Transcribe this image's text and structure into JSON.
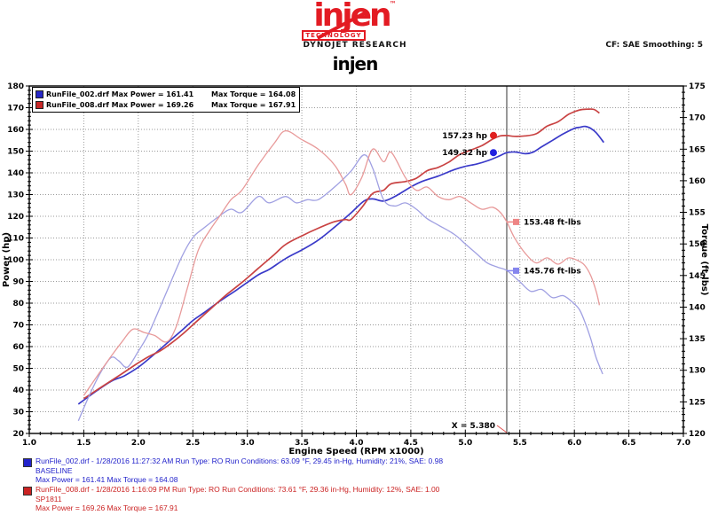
{
  "header": {
    "logo_text": "injen",
    "logo_tm": "™",
    "logo_sub": "TECHNOLOGY",
    "brand": "DYNOJET RESEARCH",
    "settings": "CF: SAE  Smoothing: 5",
    "title": "injen"
  },
  "legend": {
    "rows": [
      {
        "color": "#2828c8",
        "name_power": "RunFile_002.drf Max Power = 161.41",
        "torque": "Max Torque = 164.08"
      },
      {
        "color": "#c82828",
        "name_power": "RunFile_008.drf Max Power = 169.26",
        "torque": "Max Torque = 167.91"
      }
    ]
  },
  "chart_data": {
    "type": "line",
    "xlabel": "Engine Speed (RPM x1000)",
    "ylabel_left": "Power (hp)",
    "ylabel_right": "Torque (ft-lbs)",
    "x_range": [
      1.0,
      7.0
    ],
    "x_major": 0.5,
    "x_minor": 0.1,
    "y_left_range": [
      20,
      180
    ],
    "y_left_major": 10,
    "y_left_minor": 2,
    "y_right_range": [
      120,
      175
    ],
    "y_right_major": 5,
    "y_right_minor": 1,
    "grid_color": "#9a9a9a",
    "cursor_x": 5.38,
    "cursor_color": "#555555",
    "series": [
      {
        "name": "power-baseline",
        "axis": "left",
        "color": "#3a3ac9",
        "width": 1.7,
        "points": [
          [
            1.45,
            33.5
          ],
          [
            1.6,
            39
          ],
          [
            1.75,
            44
          ],
          [
            1.87,
            46.5
          ],
          [
            2.0,
            50.5
          ],
          [
            2.1,
            54.5
          ],
          [
            2.25,
            61
          ],
          [
            2.4,
            67.5
          ],
          [
            2.5,
            72
          ],
          [
            2.6,
            75.5
          ],
          [
            2.75,
            81
          ],
          [
            2.9,
            86
          ],
          [
            3.1,
            93
          ],
          [
            3.2,
            95.5
          ],
          [
            3.35,
            100.5
          ],
          [
            3.5,
            104.5
          ],
          [
            3.65,
            109
          ],
          [
            3.8,
            115
          ],
          [
            3.95,
            121.5
          ],
          [
            4.07,
            127
          ],
          [
            4.15,
            128
          ],
          [
            4.25,
            127
          ],
          [
            4.35,
            129
          ],
          [
            4.5,
            133.5
          ],
          [
            4.6,
            136
          ],
          [
            4.75,
            138.5
          ],
          [
            4.9,
            141.5
          ],
          [
            5.0,
            143
          ],
          [
            5.1,
            144
          ],
          [
            5.2,
            145.5
          ],
          [
            5.3,
            147.5
          ],
          [
            5.38,
            149.3
          ],
          [
            5.46,
            149.6
          ],
          [
            5.55,
            148.8
          ],
          [
            5.62,
            149.5
          ],
          [
            5.7,
            152
          ],
          [
            5.8,
            155
          ],
          [
            5.9,
            158
          ],
          [
            6.0,
            160.5
          ],
          [
            6.05,
            161
          ],
          [
            6.1,
            161.4
          ],
          [
            6.15,
            160.5
          ],
          [
            6.2,
            158.5
          ],
          [
            6.27,
            154
          ]
        ]
      },
      {
        "name": "power-sp1811",
        "axis": "left",
        "color": "#c94343",
        "width": 1.7,
        "points": [
          [
            1.5,
            36
          ],
          [
            1.65,
            41
          ],
          [
            1.85,
            47.5
          ],
          [
            2.0,
            52.5
          ],
          [
            2.1,
            55.5
          ],
          [
            2.2,
            58
          ],
          [
            2.3,
            61.5
          ],
          [
            2.4,
            65.5
          ],
          [
            2.5,
            70
          ],
          [
            2.6,
            74.5
          ],
          [
            2.7,
            79
          ],
          [
            2.8,
            83.5
          ],
          [
            2.95,
            89.5
          ],
          [
            3.1,
            96
          ],
          [
            3.25,
            102.5
          ],
          [
            3.35,
            107
          ],
          [
            3.5,
            111
          ],
          [
            3.65,
            114.5
          ],
          [
            3.8,
            117.5
          ],
          [
            3.9,
            118.5
          ],
          [
            3.95,
            118.5
          ],
          [
            4.05,
            124
          ],
          [
            4.15,
            130.5
          ],
          [
            4.25,
            132
          ],
          [
            4.32,
            135
          ],
          [
            4.45,
            136
          ],
          [
            4.55,
            137.5
          ],
          [
            4.65,
            141
          ],
          [
            4.75,
            142.5
          ],
          [
            4.85,
            145
          ],
          [
            4.95,
            148.5
          ],
          [
            5.05,
            150.5
          ],
          [
            5.15,
            152.5
          ],
          [
            5.25,
            155.5
          ],
          [
            5.32,
            157
          ],
          [
            5.38,
            157.2
          ],
          [
            5.45,
            156.8
          ],
          [
            5.55,
            157
          ],
          [
            5.65,
            158
          ],
          [
            5.75,
            161.5
          ],
          [
            5.85,
            163.5
          ],
          [
            5.95,
            167
          ],
          [
            6.05,
            169
          ],
          [
            6.12,
            169.3
          ],
          [
            6.18,
            169.2
          ],
          [
            6.23,
            167.5
          ]
        ]
      },
      {
        "name": "torque-baseline",
        "axis": "right",
        "color": "#a0a0e2",
        "width": 1.3,
        "points": [
          [
            1.45,
            122
          ],
          [
            1.55,
            126
          ],
          [
            1.65,
            129.5
          ],
          [
            1.75,
            132
          ],
          [
            1.82,
            131.5
          ],
          [
            1.9,
            130.5
          ],
          [
            2.0,
            133
          ],
          [
            2.1,
            136
          ],
          [
            2.25,
            142
          ],
          [
            2.4,
            148
          ],
          [
            2.5,
            151
          ],
          [
            2.6,
            152.5
          ],
          [
            2.75,
            154.5
          ],
          [
            2.85,
            155.5
          ],
          [
            2.95,
            155
          ],
          [
            3.1,
            157.5
          ],
          [
            3.2,
            156.5
          ],
          [
            3.35,
            157.5
          ],
          [
            3.45,
            156.5
          ],
          [
            3.55,
            157
          ],
          [
            3.65,
            157
          ],
          [
            3.8,
            159
          ],
          [
            3.95,
            161.5
          ],
          [
            4.07,
            164.1
          ],
          [
            4.15,
            162
          ],
          [
            4.25,
            157
          ],
          [
            4.35,
            156
          ],
          [
            4.45,
            156.5
          ],
          [
            4.55,
            155.5
          ],
          [
            4.65,
            154
          ],
          [
            4.75,
            153
          ],
          [
            4.9,
            151.5
          ],
          [
            5.0,
            150
          ],
          [
            5.1,
            148.5
          ],
          [
            5.2,
            147
          ],
          [
            5.3,
            146.3
          ],
          [
            5.38,
            145.8
          ],
          [
            5.5,
            144
          ],
          [
            5.6,
            142.5
          ],
          [
            5.7,
            142.8
          ],
          [
            5.8,
            141.5
          ],
          [
            5.9,
            141.8
          ],
          [
            6.0,
            140.5
          ],
          [
            6.05,
            139.5
          ],
          [
            6.1,
            137.5
          ],
          [
            6.15,
            135
          ],
          [
            6.2,
            132
          ],
          [
            6.26,
            129.4
          ]
        ]
      },
      {
        "name": "torque-sp1811",
        "axis": "right",
        "color": "#e89a9a",
        "width": 1.3,
        "points": [
          [
            1.5,
            126
          ],
          [
            1.7,
            131
          ],
          [
            1.85,
            134.5
          ],
          [
            1.95,
            136.5
          ],
          [
            2.05,
            136
          ],
          [
            2.15,
            135.5
          ],
          [
            2.26,
            134.5
          ],
          [
            2.35,
            137
          ],
          [
            2.45,
            143
          ],
          [
            2.55,
            149
          ],
          [
            2.65,
            152
          ],
          [
            2.75,
            154.5
          ],
          [
            2.85,
            157
          ],
          [
            2.95,
            158.5
          ],
          [
            3.1,
            162.5
          ],
          [
            3.25,
            166
          ],
          [
            3.35,
            167.9
          ],
          [
            3.5,
            166.5
          ],
          [
            3.65,
            165
          ],
          [
            3.8,
            162.5
          ],
          [
            3.9,
            159.5
          ],
          [
            3.95,
            157.8
          ],
          [
            4.05,
            160.5
          ],
          [
            4.15,
            165
          ],
          [
            4.25,
            163
          ],
          [
            4.32,
            164.5
          ],
          [
            4.45,
            160.5
          ],
          [
            4.55,
            158.5
          ],
          [
            4.65,
            159
          ],
          [
            4.75,
            157.5
          ],
          [
            4.85,
            157
          ],
          [
            4.95,
            157.5
          ],
          [
            5.05,
            156.5
          ],
          [
            5.15,
            155.5
          ],
          [
            5.25,
            155.8
          ],
          [
            5.32,
            155
          ],
          [
            5.38,
            153.5
          ],
          [
            5.45,
            151
          ],
          [
            5.55,
            148.5
          ],
          [
            5.65,
            147
          ],
          [
            5.75,
            147.8
          ],
          [
            5.85,
            146.8
          ],
          [
            5.95,
            147.8
          ],
          [
            6.05,
            147.2
          ],
          [
            6.1,
            146.5
          ],
          [
            6.15,
            145
          ],
          [
            6.2,
            142.5
          ],
          [
            6.23,
            140.3
          ]
        ]
      }
    ],
    "annotations": {
      "power": [
        {
          "label": "157.23 hp",
          "value": 157.23,
          "marker_color": "#e02020"
        },
        {
          "label": "149.32 hp",
          "value": 149.32,
          "marker_color": "#2020e0"
        }
      ],
      "torque": [
        {
          "label": "153.48 ft-lbs",
          "value": 153.48,
          "marker_color": "#ee8585"
        },
        {
          "label": "145.76 ft-lbs",
          "value": 145.76,
          "marker_color": "#8585ee"
        }
      ],
      "cursor_label": "X = 5.380",
      "cursor_label_color": "#000000",
      "cursor_pointer_color": "#e05050"
    }
  },
  "footer": {
    "runs": [
      {
        "color": "#2323cb",
        "line1": "RunFile_002.drf - 1/28/2016 11:27:32 AM  Run Type: RO  Run Conditions: 63.09 °F, 29.45 in-Hg,  Humidity:  21%, SAE: 0.98",
        "line2": "BASELINE",
        "line3": "Max Power = 161.41  Max Torque = 164.08"
      },
      {
        "color": "#cb2323",
        "line1": "RunFile_008.drf - 1/28/2016 1:16:09 PM  Run Type: RO  Run Conditions: 73.61 °F, 29.36 in-Hg,  Humidity:  12%, SAE: 1.00",
        "line2": "SP1811",
        "line3": "Max Power = 169.26  Max Torque = 167.91"
      }
    ]
  }
}
